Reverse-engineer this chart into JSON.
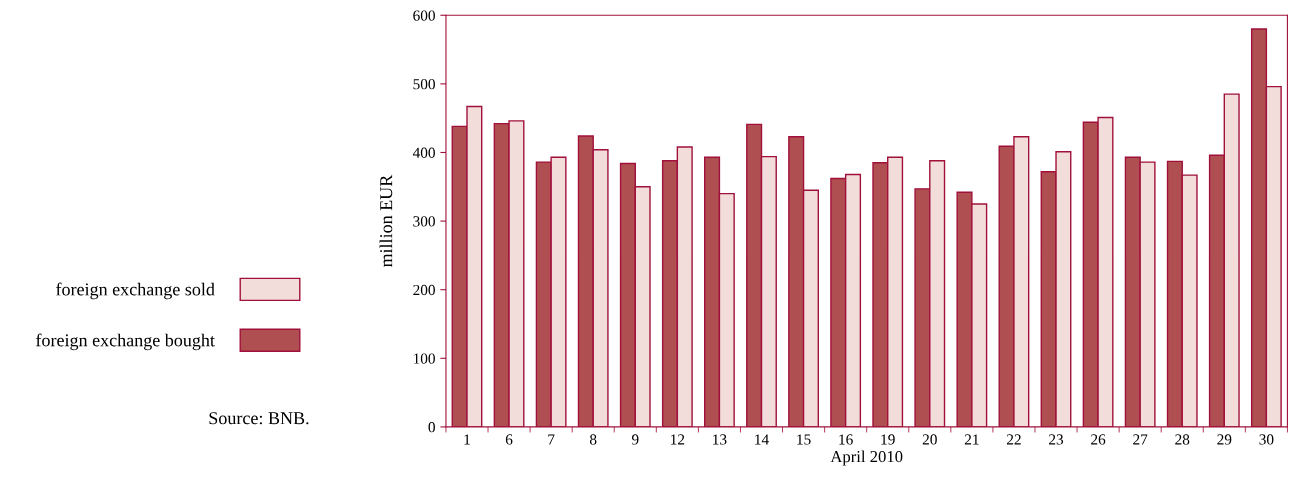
{
  "chart_data": {
    "type": "bar",
    "xlabel": "April 2010",
    "ylabel": "million EUR",
    "categories": [
      "1",
      "6",
      "7",
      "8",
      "9",
      "12",
      "13",
      "14",
      "15",
      "16",
      "19",
      "20",
      "21",
      "22",
      "23",
      "26",
      "27",
      "28",
      "29",
      "30"
    ],
    "series": [
      {
        "name": "foreign exchange bought",
        "color": "#b04f52",
        "values": [
          438,
          442,
          386,
          424,
          384,
          388,
          393,
          441,
          423,
          362,
          385,
          347,
          342,
          409,
          372,
          444,
          393,
          387,
          396,
          580
        ]
      },
      {
        "name": "foreign exchange sold",
        "color": "#f2dddb",
        "values": [
          467,
          446,
          393,
          404,
          350,
          408,
          340,
          394,
          345,
          368,
          393,
          388,
          325,
          423,
          401,
          451,
          386,
          367,
          485,
          496
        ]
      }
    ],
    "ylim": [
      0,
      600
    ],
    "yticks": [
      0,
      100,
      200,
      300,
      400,
      500,
      600
    ],
    "grid": false,
    "legend": "left",
    "annotations": [
      "Source: BNB."
    ]
  }
}
